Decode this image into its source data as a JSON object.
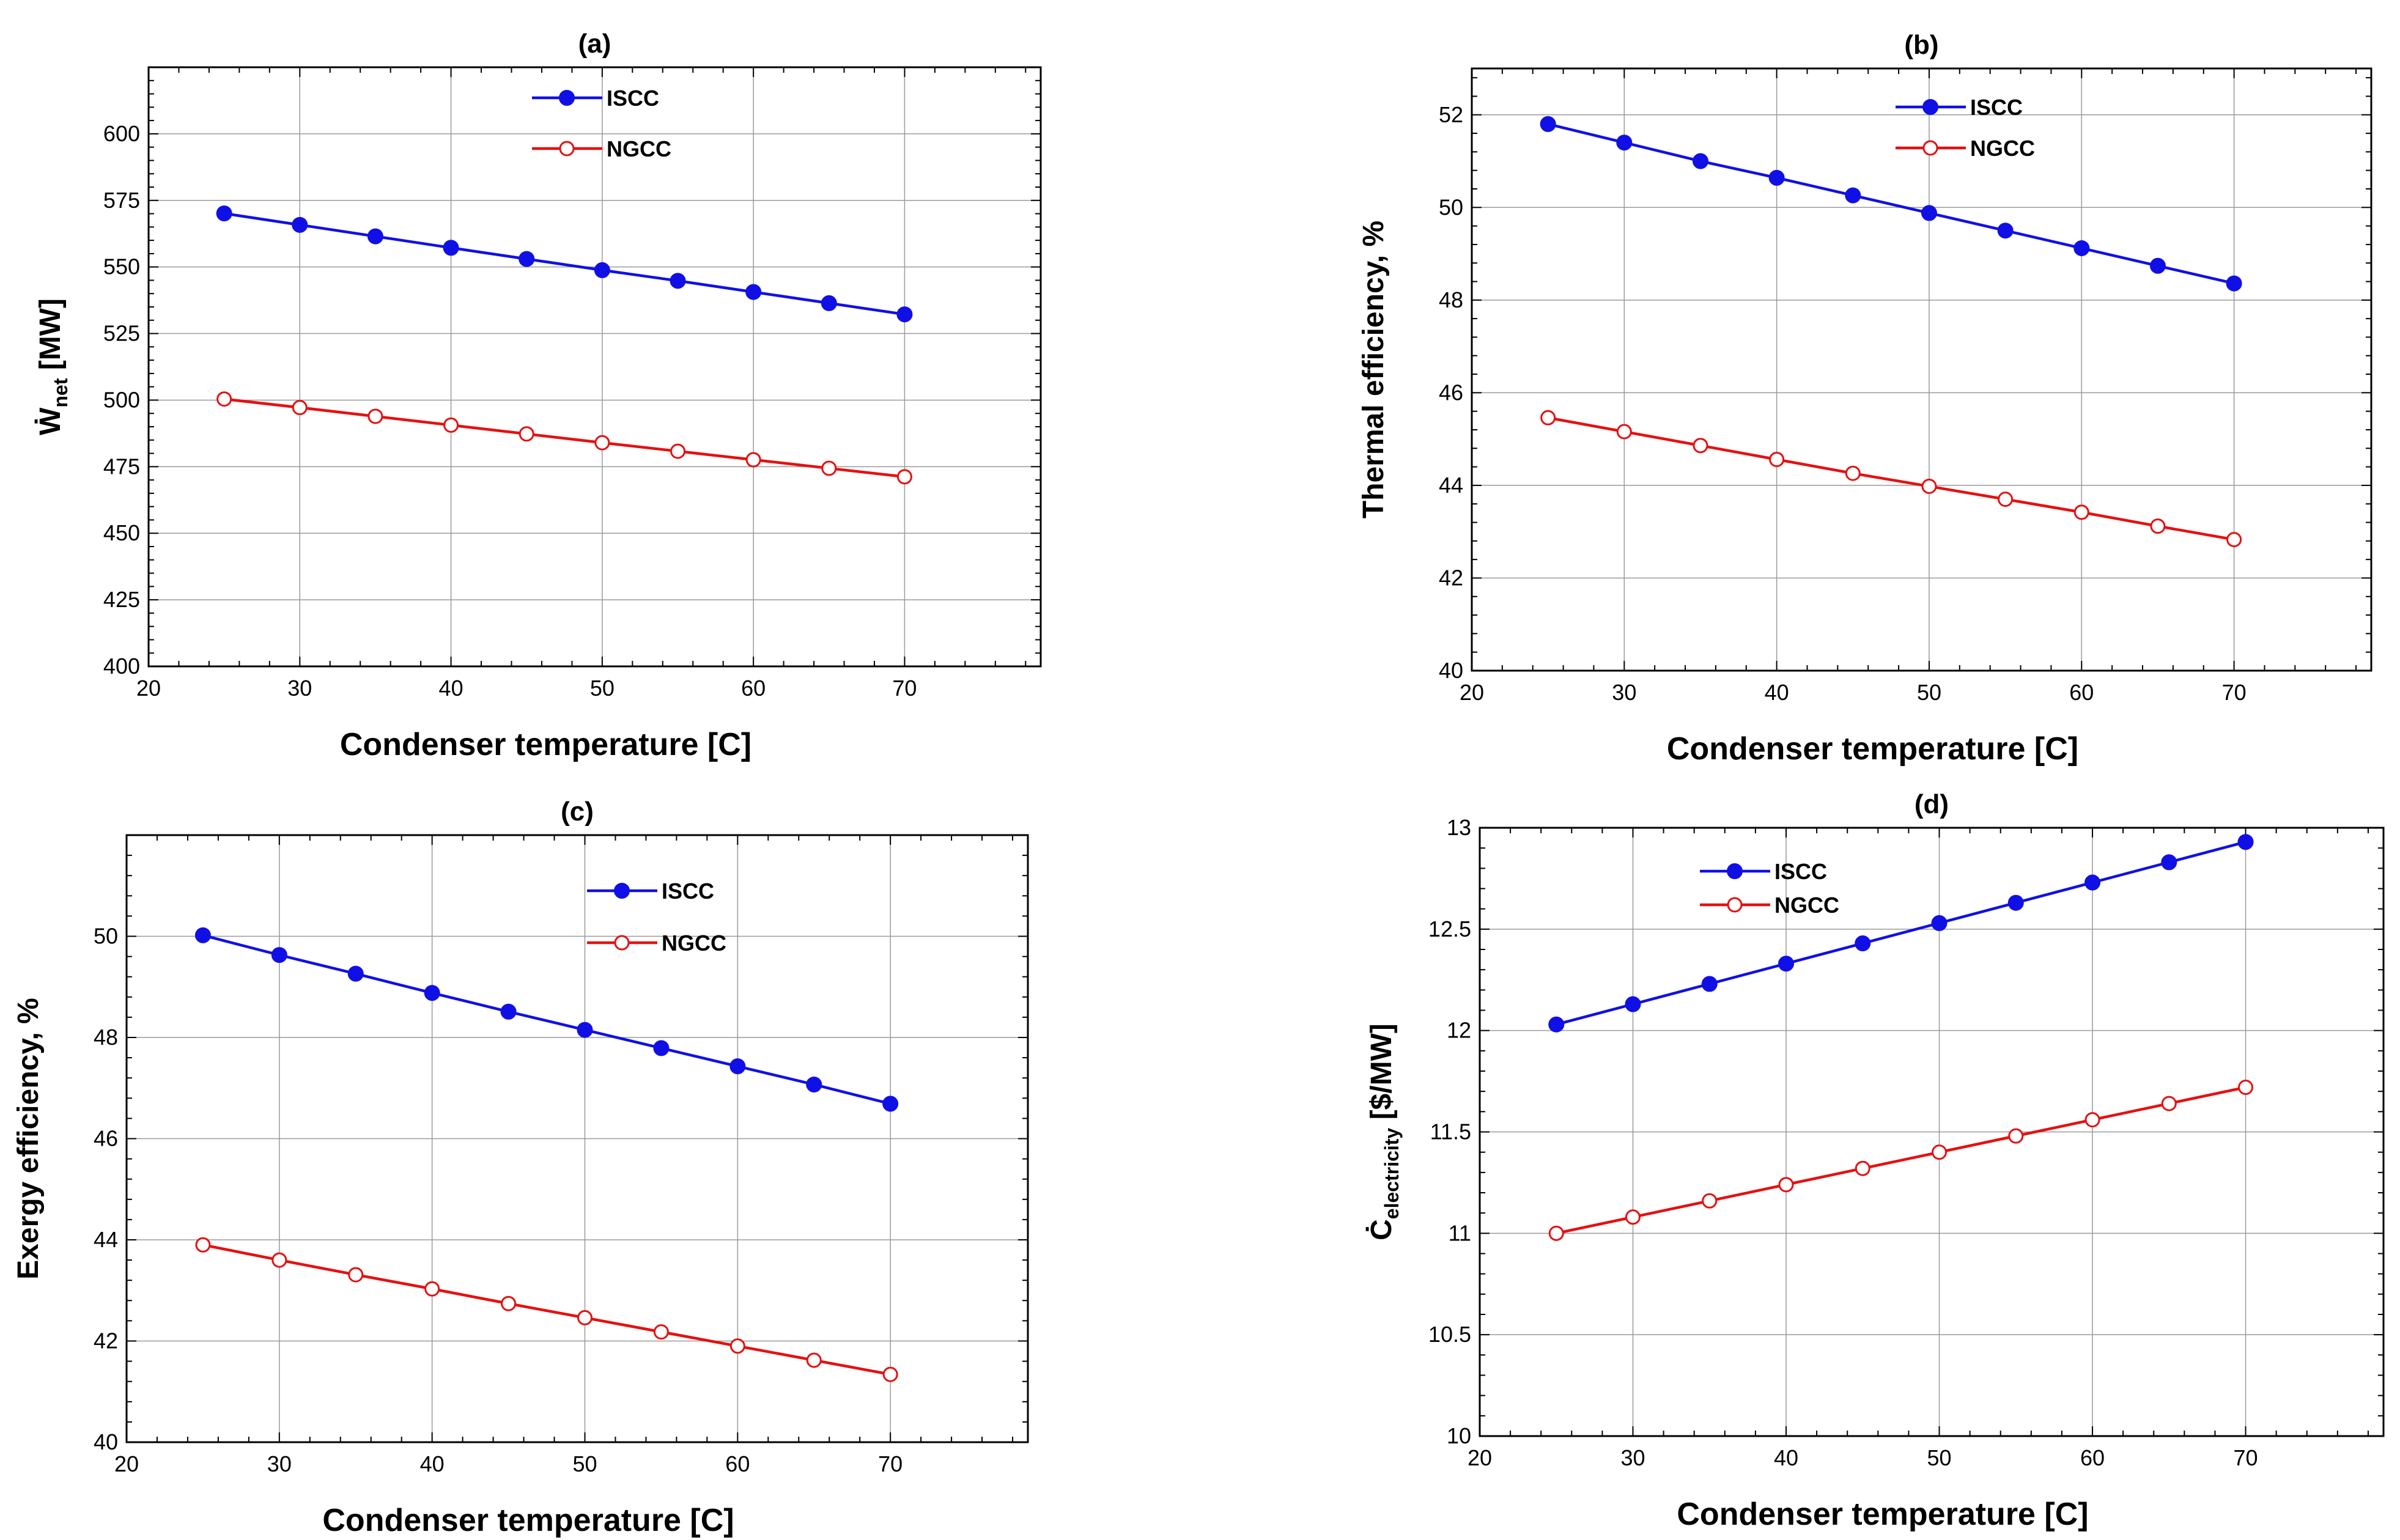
{
  "colors": {
    "iscc": "#1010e6",
    "ngcc": "#e61010",
    "grid": "#9a9a9a"
  },
  "chart_data": [
    {
      "id": "a",
      "type": "line",
      "title": "(a)",
      "xlabel": "Condenser temperature  [C]",
      "ylabel": {
        "main": "Ẇ",
        "sub": "net",
        "unit": " [MW]"
      },
      "xlim": [
        20,
        79
      ],
      "ylim": [
        400,
        625
      ],
      "xticks": [
        20,
        30,
        40,
        50,
        60,
        70
      ],
      "yticks": [
        400,
        425,
        450,
        475,
        500,
        525,
        550,
        575,
        600
      ],
      "ytick_labels": [
        "400",
        "425",
        "450",
        "475",
        "500",
        "525",
        "550",
        "575",
        "600"
      ],
      "legend_position": "top-center",
      "x": [
        25,
        30,
        35,
        40,
        45,
        50,
        55,
        60,
        65,
        70
      ],
      "series": [
        {
          "name": "ISCC",
          "marker": "filled",
          "values": [
            570.1,
            565.8,
            561.5,
            557.2,
            553.0,
            548.8,
            544.8,
            540.6,
            536.4,
            532.2
          ]
        },
        {
          "name": "NGCC",
          "marker": "open",
          "values": [
            500.4,
            497.2,
            493.9,
            490.6,
            487.3,
            484.0,
            480.8,
            477.6,
            474.4,
            471.2
          ]
        }
      ]
    },
    {
      "id": "b",
      "type": "line",
      "title": "(b)",
      "xlabel": "Condenser temperature  [C]",
      "ylabel": {
        "main": "Thermal efficiency, %",
        "sub": "",
        "unit": ""
      },
      "xlim": [
        20,
        79
      ],
      "ylim": [
        40,
        53
      ],
      "xticks": [
        20,
        30,
        40,
        50,
        60,
        70
      ],
      "yticks": [
        40,
        42,
        44,
        46,
        48,
        50,
        52
      ],
      "ytick_labels": [
        "40",
        "42",
        "44",
        "46",
        "48",
        "50",
        "52"
      ],
      "legend_position": "top-center",
      "x": [
        25,
        30,
        35,
        40,
        45,
        50,
        55,
        60,
        65,
        70
      ],
      "series": [
        {
          "name": "ISCC",
          "marker": "filled",
          "values": [
            51.8,
            51.4,
            51.0,
            50.64,
            50.26,
            49.88,
            49.5,
            49.12,
            48.74,
            48.36
          ]
        },
        {
          "name": "NGCC",
          "marker": "open",
          "values": [
            45.46,
            45.16,
            44.86,
            44.56,
            44.26,
            43.98,
            43.7,
            43.42,
            43.12,
            42.83
          ]
        }
      ]
    },
    {
      "id": "c",
      "type": "line",
      "title": "(c)",
      "xlabel": "Condenser temperature  [C]",
      "ylabel": {
        "main": "Exergy efficiency, %",
        "sub": "",
        "unit": ""
      },
      "xlim": [
        20,
        79
      ],
      "ylim": [
        40,
        52
      ],
      "xticks": [
        20,
        30,
        40,
        50,
        60,
        70
      ],
      "yticks": [
        40,
        42,
        44,
        46,
        48,
        50
      ],
      "ytick_labels": [
        "40",
        "42",
        "44",
        "46",
        "48",
        "50"
      ],
      "legend_position": "top-right",
      "x": [
        25,
        30,
        35,
        40,
        45,
        50,
        55,
        60,
        65,
        70
      ],
      "series": [
        {
          "name": "ISCC",
          "marker": "filled",
          "values": [
            50.02,
            49.63,
            49.26,
            48.88,
            48.51,
            48.15,
            47.79,
            47.43,
            47.07,
            46.69
          ]
        },
        {
          "name": "NGCC",
          "marker": "open",
          "values": [
            43.9,
            43.6,
            43.31,
            43.03,
            42.74,
            42.46,
            42.18,
            41.9,
            41.62,
            41.34
          ]
        }
      ]
    },
    {
      "id": "d",
      "type": "line",
      "title": "(d)",
      "xlabel": "Condenser temperature  [C]",
      "ylabel": {
        "main": "Ċ",
        "sub": "electricity",
        "unit": " [$/MW]"
      },
      "xlim": [
        20,
        79
      ],
      "ylim": [
        10,
        13
      ],
      "xticks": [
        20,
        30,
        40,
        50,
        60,
        70
      ],
      "yticks": [
        10,
        10.5,
        11,
        11.5,
        12,
        12.5,
        13
      ],
      "ytick_labels": [
        "10",
        "10.5",
        "11",
        "11.5",
        "12",
        "12.5",
        "13"
      ],
      "legend_position": "top-left",
      "x": [
        25,
        30,
        35,
        40,
        45,
        50,
        55,
        60,
        65,
        70
      ],
      "series": [
        {
          "name": "ISCC",
          "marker": "filled",
          "values": [
            12.03,
            12.13,
            12.23,
            12.33,
            12.43,
            12.53,
            12.63,
            12.73,
            12.83,
            12.93
          ]
        },
        {
          "name": "NGCC",
          "marker": "open",
          "values": [
            11.0,
            11.08,
            11.16,
            11.24,
            11.32,
            11.4,
            11.48,
            11.56,
            11.64,
            11.72
          ]
        }
      ]
    }
  ]
}
